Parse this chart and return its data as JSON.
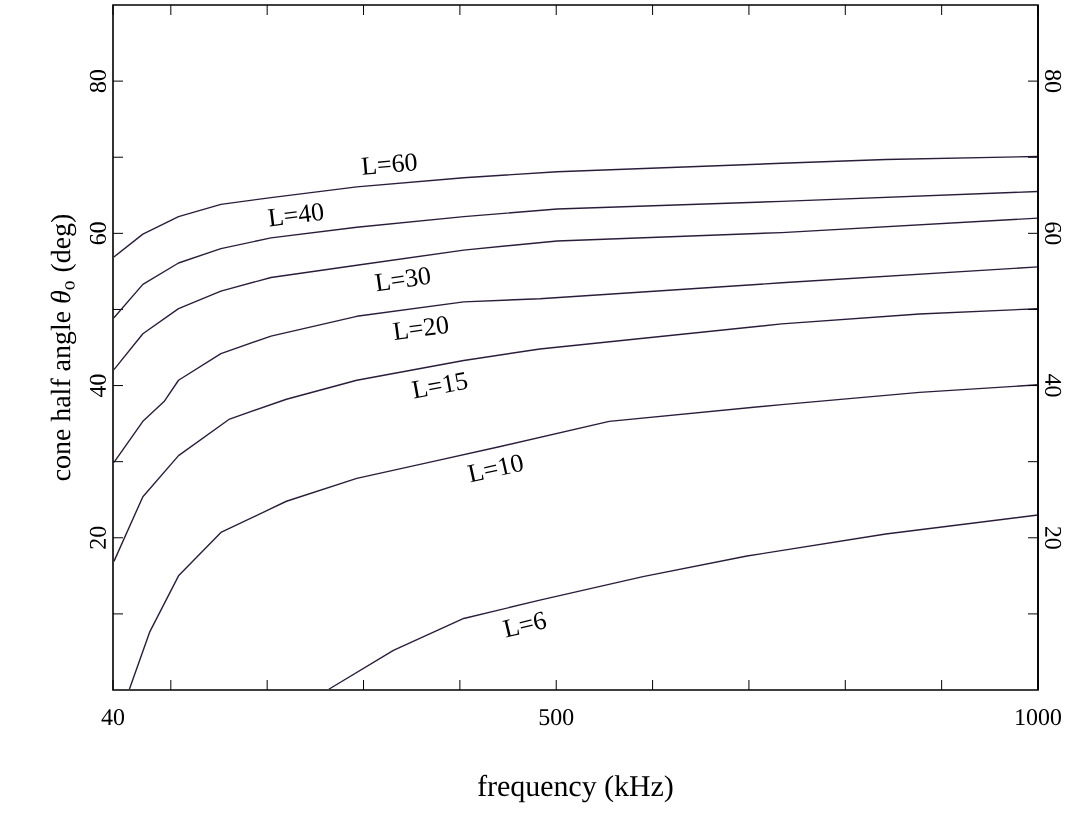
{
  "chart_data": {
    "type": "line",
    "xlabel": "frequency (kHz)",
    "ylabel": "cone half angle *θ*$_{o}$ (deg)",
    "xlim": [
      40,
      1000
    ],
    "xticks": [
      40,
      {
        "value": 100,
        "label": null
      },
      {
        "value": 200,
        "label": null
      },
      {
        "value": 300,
        "label": null
      },
      {
        "value": 400,
        "label": null
      },
      500,
      {
        "value": 600,
        "label": null
      },
      {
        "value": 700,
        "label": null
      },
      {
        "value": 800,
        "label": null
      },
      {
        "value": 900,
        "label": null
      },
      1000
    ],
    "ylim": [
      0,
      90
    ],
    "yticks": [
      {
        "value": 10,
        "label": null
      },
      20,
      {
        "value": 30,
        "label": null
      },
      40,
      {
        "value": 50,
        "label": null
      },
      60,
      {
        "value": 70,
        "label": null
      },
      80
    ],
    "y2lim": [
      0,
      90
    ],
    "y2ticks": [
      {
        "value": 10,
        "label": null
      },
      20,
      {
        "value": 30,
        "label": null
      },
      40,
      {
        "value": 50,
        "label": null
      },
      60,
      {
        "value": 70,
        "label": null
      },
      80
    ],
    "line_style": "solid",
    "marker": "none",
    "series": [
      {
        "name": "L=60",
        "color": "#2b1d3a",
        "x": [
          41,
          71,
          108,
          152,
          204,
          293,
          404,
          501,
          734,
          842,
          1000
        ],
        "values": [
          56.9,
          59.9,
          62.2,
          63.8,
          64.7,
          66.1,
          67.3,
          68.1,
          69.2,
          69.7,
          70.1
        ]
      },
      {
        "name": "L=40",
        "color": "#2b1d3a",
        "x": [
          41,
          71,
          108,
          152,
          204,
          293,
          404,
          501,
          734,
          1000
        ],
        "values": [
          48.9,
          53.3,
          56.1,
          58.0,
          59.4,
          60.8,
          62.2,
          63.2,
          64.2,
          65.5
        ]
      },
      {
        "name": "L=30",
        "color": "#2b1d3a",
        "x": [
          41,
          71,
          108,
          152,
          204,
          293,
          404,
          501,
          734,
          1000
        ],
        "values": [
          42.1,
          46.8,
          50.1,
          52.4,
          54.2,
          55.8,
          57.8,
          59.0,
          60.1,
          62.0
        ]
      },
      {
        "name": "L=20",
        "color": "#2b1d3a",
        "x": [
          41,
          71,
          93,
          108,
          152,
          204,
          293,
          404,
          483,
          734,
          1000
        ],
        "values": [
          29.9,
          35.3,
          37.9,
          40.7,
          44.2,
          46.5,
          49.1,
          51.0,
          51.4,
          53.5,
          55.6
        ]
      },
      {
        "name": "L=15",
        "color": "#2b1d3a",
        "x": [
          41,
          71,
          108,
          161,
          220,
          293,
          404,
          483,
          734,
          877,
          1000
        ],
        "values": [
          16.9,
          25.4,
          30.8,
          35.6,
          38.2,
          40.7,
          43.3,
          44.8,
          48.1,
          49.4,
          50.1
        ]
      },
      {
        "name": "L=10",
        "color": "#2b1d3a",
        "x": [
          57,
          78,
          108,
          152,
          220,
          293,
          368,
          442,
          555,
          734,
          877,
          1000
        ],
        "values": [
          0.1,
          7.6,
          15.0,
          20.7,
          24.8,
          27.8,
          29.9,
          32.0,
          35.3,
          37.5,
          39.1,
          40.1
        ]
      },
      {
        "name": "L=6",
        "color": "#2b1d3a",
        "x": [
          264,
          331,
          404,
          483,
          590,
          698,
          842,
          1000
        ],
        "values": [
          0.1,
          5.2,
          9.4,
          11.8,
          14.9,
          17.6,
          20.5,
          23.0
        ]
      }
    ]
  }
}
